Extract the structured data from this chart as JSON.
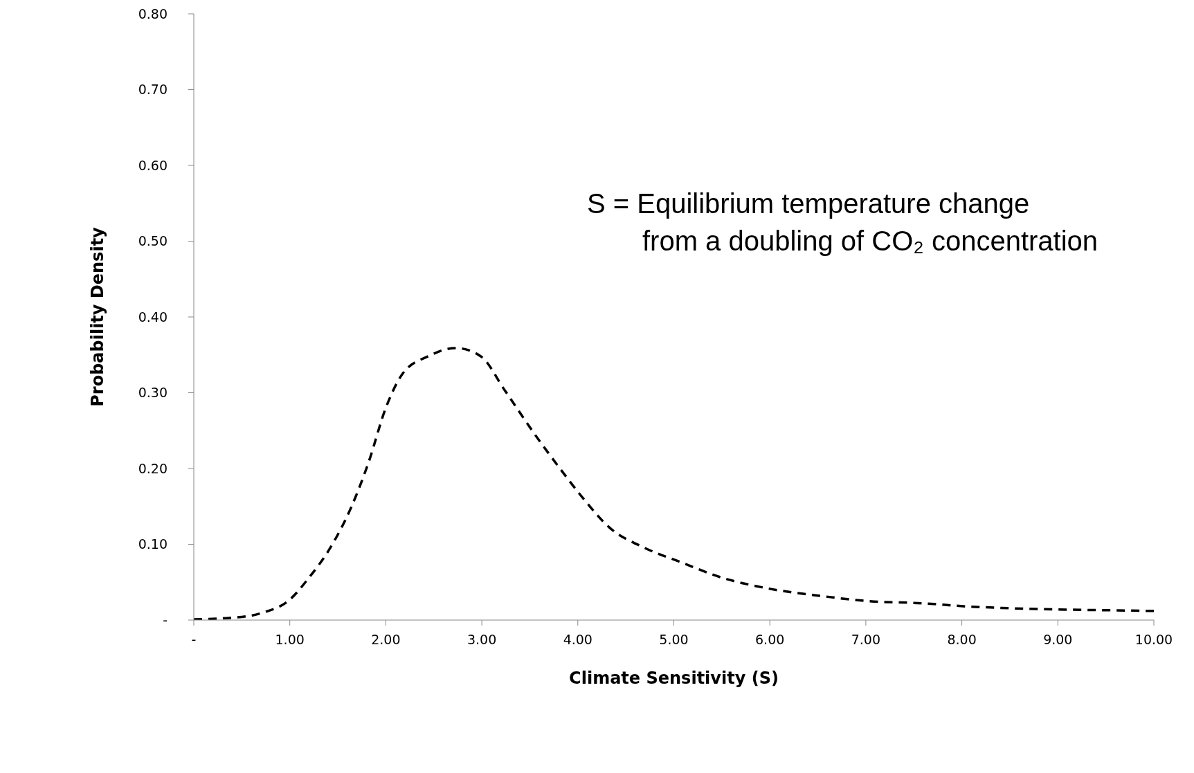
{
  "chart_data": {
    "type": "line",
    "xlabel": "Climate Sensitivity (S)",
    "ylabel": "Probability Density",
    "annotations": [
      "S = Equilibrium temperature change\nfrom a doubling of CO₂ concentration"
    ],
    "x": [
      0,
      0.4,
      0.7,
      1.0,
      1.2,
      1.42,
      1.64,
      1.82,
      2.0,
      2.18,
      2.44,
      2.73,
      2.99,
      3.24,
      3.53,
      3.82,
      4.04,
      4.33,
      4.7,
      5.06,
      5.5,
      6.01,
      6.52,
      7.03,
      7.61,
      8.05,
      8.41,
      8.99,
      9.5,
      10
    ],
    "series": [
      {
        "color": "#000000",
        "line_style": "dashed",
        "values": [
          0.001,
          0.003,
          0.009,
          0.027,
          0.056,
          0.095,
          0.149,
          0.208,
          0.28,
          0.326,
          0.348,
          0.359,
          0.348,
          0.303,
          0.249,
          0.199,
          0.163,
          0.122,
          0.095,
          0.077,
          0.056,
          0.041,
          0.032,
          0.025,
          0.022,
          0.018,
          0.016,
          0.014,
          0.013,
          0.012
        ]
      }
    ],
    "xlim": [
      0,
      10
    ],
    "xticks": [
      {
        "value": 0,
        "label": "-"
      },
      {
        "value": 1,
        "label": "1.00"
      },
      {
        "value": 2,
        "label": "2.00"
      },
      {
        "value": 3,
        "label": "3.00"
      },
      {
        "value": 4,
        "label": "4.00"
      },
      {
        "value": 5,
        "label": "5.00"
      },
      {
        "value": 6,
        "label": "6.00"
      },
      {
        "value": 7,
        "label": "7.00"
      },
      {
        "value": 8,
        "label": "8.00"
      },
      {
        "value": 9,
        "label": "9.00"
      },
      {
        "value": 10,
        "label": "10.00"
      }
    ],
    "ylim": [
      0,
      0.8
    ],
    "yticks": [
      {
        "value": 0,
        "label": "-"
      },
      {
        "value": 0.1,
        "label": "0.10"
      },
      {
        "value": 0.2,
        "label": "0.20"
      },
      {
        "value": 0.3,
        "label": "0.30"
      },
      {
        "value": 0.4,
        "label": "0.40"
      },
      {
        "value": 0.5,
        "label": "0.50"
      },
      {
        "value": 0.6,
        "label": "0.60"
      },
      {
        "value": 0.7,
        "label": "0.70"
      },
      {
        "value": 0.8,
        "label": "0.80"
      }
    ],
    "grid": false,
    "legend": false,
    "marker": "none"
  }
}
